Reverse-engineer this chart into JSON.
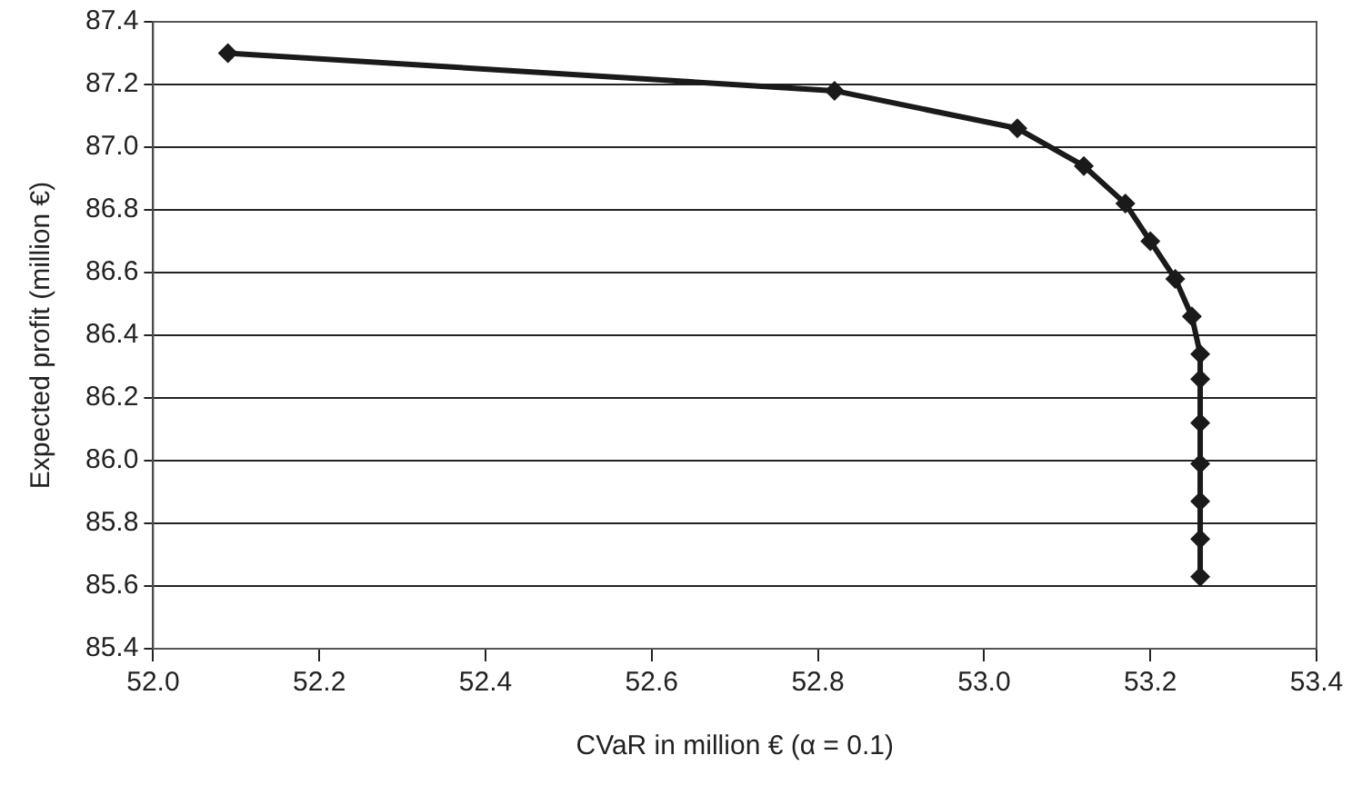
{
  "chart_data": {
    "type": "line",
    "xlabel": "CVaR in million € (α = 0.1)",
    "ylabel": "Expected profit (million €)",
    "x": [
      52.09,
      52.82,
      53.04,
      53.12,
      53.17,
      53.2,
      53.23,
      53.25,
      53.26,
      53.26,
      53.26,
      53.26,
      53.26,
      53.26,
      53.26
    ],
    "series": [
      {
        "color": "#1a1a1a",
        "values": [
          87.3,
          87.18,
          87.06,
          86.94,
          86.82,
          86.7,
          86.58,
          86.46,
          86.34,
          86.26,
          86.12,
          85.99,
          85.87,
          85.75,
          85.63
        ]
      }
    ],
    "xlim": [
      52.0,
      53.4
    ],
    "xticks": [
      {
        "value": 52,
        "label": "52.0"
      },
      52.2,
      52.4,
      52.6,
      52.8,
      {
        "value": 53,
        "label": "53.0"
      },
      53.2,
      53.4
    ],
    "ylim": [
      85.4,
      87.4
    ],
    "yticks": [
      85.4,
      85.6,
      85.8,
      {
        "value": 86,
        "label": "86.0"
      },
      86.2,
      86.4,
      86.6,
      86.8,
      {
        "value": 87,
        "label": "87.0"
      },
      87.2,
      87.4
    ],
    "grid": "y",
    "legend": false,
    "marker": "diamond",
    "line_style": "solid"
  }
}
